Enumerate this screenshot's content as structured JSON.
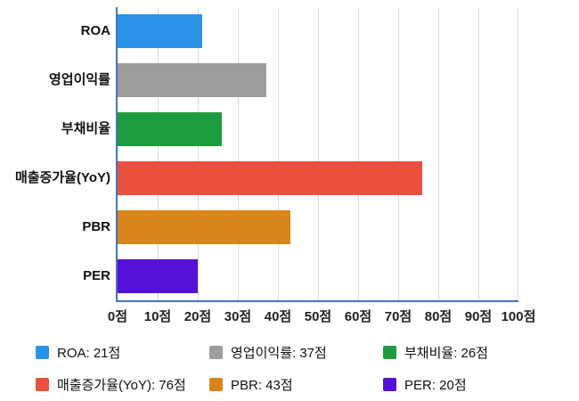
{
  "chart_data": {
    "type": "bar",
    "orientation": "horizontal",
    "title": "",
    "categories": [
      "ROA",
      "영업이익률",
      "부채비율",
      "매출증가율(YoY)",
      "PBR",
      "PER"
    ],
    "values": [
      21,
      37,
      26,
      76,
      43,
      20
    ],
    "unit": "점",
    "series_colors": [
      "#2a93e8",
      "#9d9d9d",
      "#1e9c40",
      "#e9503e",
      "#d8861a",
      "#5512d6"
    ],
    "xlim": [
      0,
      100
    ],
    "x_ticks": [
      0,
      10,
      20,
      30,
      40,
      50,
      60,
      70,
      80,
      90,
      100
    ],
    "x_tick_labels": [
      "0점",
      "10점",
      "20점",
      "30점",
      "40점",
      "50점",
      "60점",
      "70점",
      "80점",
      "90점",
      "100점"
    ],
    "grid": true,
    "legend_position": "bottom",
    "legend_labels": [
      "ROA: 21점",
      "영업이익률: 37점",
      "부채비율: 26점",
      "매출증가율(YoY): 76점",
      "PBR: 43점",
      "PER: 20점"
    ]
  },
  "colors": {
    "axis": "#4472c4",
    "grid": "#d9d9d9",
    "text": "#111111",
    "background": "#ffffff"
  }
}
